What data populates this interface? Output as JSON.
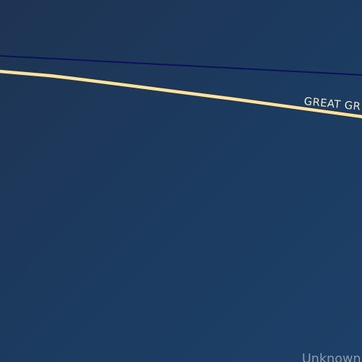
{
  "map": {
    "background_color": "#1d3a5e",
    "lines": {
      "thin_line_color": "#0c0f5a",
      "road_color": "#efe3b8",
      "road_casing_color": "#3a3320"
    },
    "labels": {
      "road": "GREAT GR",
      "place": "Unknown"
    }
  }
}
